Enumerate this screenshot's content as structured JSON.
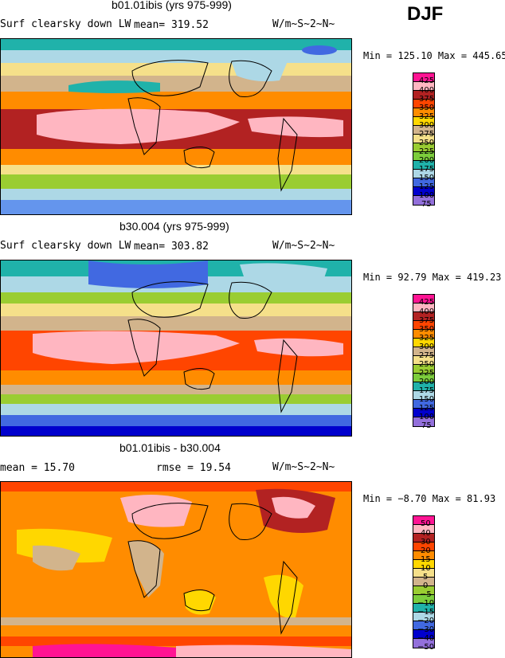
{
  "season": "DJF",
  "panels": [
    {
      "title": "b01.01ibis (yrs 975-999)",
      "variable": "Surf clearsky down LW",
      "stat1": "mean=  319.52",
      "units": "W/m~S~2~N~",
      "minmax": "Min = 125.10 Max = 445.65",
      "legend_labels": [
        "425",
        "400",
        "375",
        "350",
        "325",
        "300",
        "275",
        "250",
        "225",
        "200",
        "175",
        "150",
        "125",
        "100",
        "75"
      ]
    },
    {
      "title": "b30.004 (yrs 975-999)",
      "variable": "Surf clearsky down LW",
      "stat1": "mean=  303.82",
      "units": "W/m~S~2~N~",
      "minmax": "Min =  92.79 Max = 419.23",
      "legend_labels": [
        "425",
        "400",
        "375",
        "350",
        "325",
        "300",
        "275",
        "250",
        "225",
        "200",
        "175",
        "150",
        "125",
        "100",
        "75"
      ]
    },
    {
      "title": "b01.01ibis - b30.004",
      "stat1": "mean =   15.70",
      "stat2": "rmse =   19.54",
      "units": "W/m~S~2~N~",
      "minmax": "Min =  −8.70 Max =  81.93",
      "legend_labels": [
        "50",
        "40",
        "30",
        "20",
        "15",
        "10",
        "5",
        "0",
        "−5",
        "−10",
        "−15",
        "−20",
        "−30",
        "−40",
        "−50"
      ]
    }
  ],
  "colors": {
    "scale": [
      "#ff1493",
      "#ffb6c1",
      "#b22222",
      "#ff4500",
      "#ff8c00",
      "#ffd700",
      "#f5e08a",
      "#d2b48c",
      "#f5f5dc",
      "#9acd32",
      "#7ccd3c",
      "#20b2aa",
      "#add8e6",
      "#4169e1",
      "#0000cd",
      "#9370db"
    ]
  }
}
